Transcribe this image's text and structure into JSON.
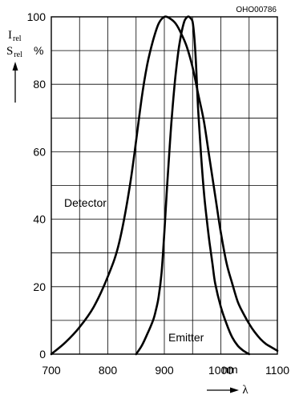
{
  "chart_data": {
    "type": "line",
    "code": "OHO00786",
    "xlim": [
      700,
      1100
    ],
    "ylim": [
      0,
      100
    ],
    "x_ticks": [
      700,
      800,
      900,
      1000,
      1100
    ],
    "y_ticks": [
      0,
      20,
      40,
      60,
      80,
      100
    ],
    "xunit": "nm",
    "xsymbol": "λ",
    "ylabel_symbols": [
      "I",
      "S"
    ],
    "ylabel_subscript": "rel",
    "yunit": "%",
    "grid": true,
    "series": [
      {
        "name": "Detector",
        "x": [
          700,
          725,
          750,
          775,
          800,
          820,
          840,
          860,
          870,
          880,
          890,
          900,
          910,
          920,
          930,
          940,
          950,
          960,
          970,
          980,
          990,
          1000,
          1010,
          1020,
          1030,
          1040,
          1050,
          1060,
          1070,
          1080,
          1090,
          1100
        ],
        "y": [
          0,
          3.5,
          8,
          14,
          23,
          33,
          51,
          76,
          86,
          93,
          98,
          100,
          99.5,
          98,
          95,
          91,
          85,
          77,
          69,
          58,
          47,
          36,
          27,
          21,
          15.5,
          12,
          9,
          6.5,
          4.5,
          3,
          2,
          1
        ]
      },
      {
        "name": "Emitter",
        "x": [
          850,
          860,
          870,
          880,
          885,
          890,
          895,
          900,
          905,
          910,
          915,
          920,
          925,
          930,
          935,
          938,
          941,
          944,
          947,
          950,
          953,
          956,
          960,
          965,
          970,
          975,
          980,
          985,
          990,
          1000,
          1010,
          1020,
          1030,
          1040,
          1050
        ],
        "y": [
          0,
          2.5,
          6,
          10,
          13,
          17,
          24,
          36,
          50,
          63,
          74,
          83,
          90,
          95,
          98.5,
          99.5,
          100,
          100,
          99.5,
          98.5,
          94,
          86,
          72,
          59,
          48,
          40,
          33,
          27,
          21,
          14,
          9,
          5,
          2.5,
          1,
          0
        ]
      }
    ]
  }
}
